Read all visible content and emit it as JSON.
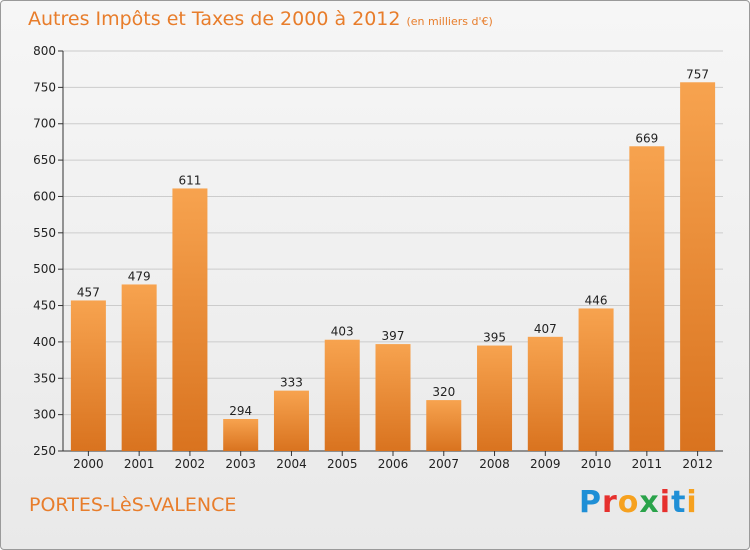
{
  "chart_data": {
    "type": "bar",
    "title": "Autres Impôts et Taxes de 2000 à 2012",
    "subtitle": "(en milliers d'€)",
    "categories": [
      "2000",
      "2001",
      "2002",
      "2003",
      "2004",
      "2005",
      "2006",
      "2007",
      "2008",
      "2009",
      "2010",
      "2011",
      "2012"
    ],
    "values": [
      457,
      479,
      611,
      294,
      333,
      403,
      397,
      320,
      395,
      407,
      446,
      669,
      757
    ],
    "ylim": [
      250,
      800
    ],
    "yticks": [
      250,
      300,
      350,
      400,
      450,
      500,
      550,
      600,
      650,
      700,
      750,
      800
    ],
    "grid": true,
    "bar_color_top": "#f7a34f",
    "bar_color_bottom": "#d9731f"
  },
  "footer": {
    "city": "PORTES-LèS-VALENCE",
    "logo_letters": [
      "P",
      "r",
      "o",
      "x",
      "i",
      "t",
      "i"
    ],
    "logo_colors": [
      "#1f8fd6",
      "#e6302d",
      "#f6a11f",
      "#2aa34a",
      "#e6302d",
      "#1f8fd6",
      "#f6a11f"
    ]
  },
  "colors": {
    "accent": "#e87d2b",
    "grid": "#cccccc"
  }
}
